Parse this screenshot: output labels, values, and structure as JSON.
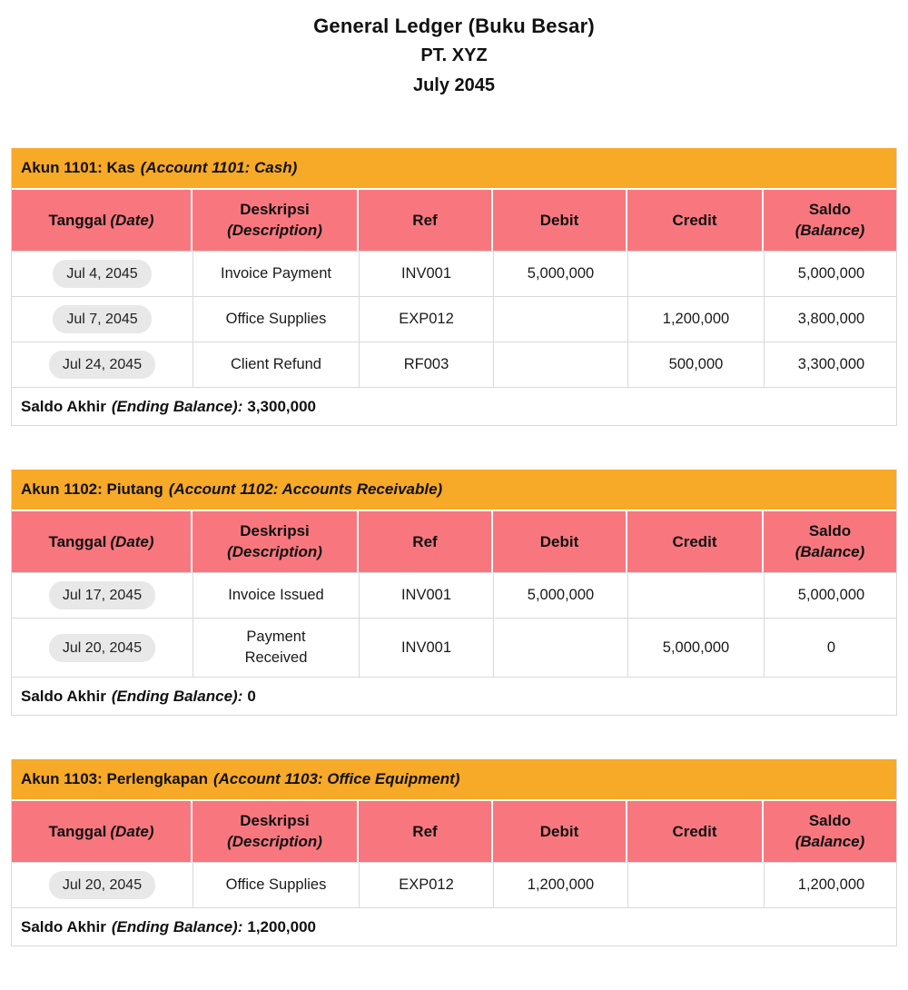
{
  "page": {
    "title_line1": "General Ledger (Buku Besar)",
    "title_line2": "PT. XYZ",
    "title_line3": "July 2045"
  },
  "colors": {
    "account_band_orange": "#f7a928",
    "column_header_pink": "#f8777e",
    "date_pill_gray": "#e8e8e8",
    "grid_line": "#d9d9d9"
  },
  "column_headers": [
    {
      "key": "date",
      "main": "Tanggal",
      "italic": "(Date)",
      "stacked": false
    },
    {
      "key": "description",
      "main": "Deskripsi",
      "italic": "(Description)",
      "stacked": true
    },
    {
      "key": "ref",
      "main": "Ref",
      "italic": "",
      "stacked": false
    },
    {
      "key": "debit",
      "main": "Debit",
      "italic": "",
      "stacked": false
    },
    {
      "key": "credit",
      "main": "Credit",
      "italic": "",
      "stacked": false
    },
    {
      "key": "balance",
      "main": "Saldo",
      "italic": "(Balance)",
      "stacked": true
    }
  ],
  "tables": [
    {
      "account_title_id": "Akun 1101: Kas",
      "account_title_en": "(Account 1101: Cash)",
      "rows": [
        {
          "date": "Jul 4, 2045",
          "description": "Invoice Payment",
          "ref": "INV001",
          "debit": "5,000,000",
          "credit": "",
          "balance": "5,000,000"
        },
        {
          "date": "Jul 7, 2045",
          "description": "Office Supplies",
          "ref": "EXP012",
          "debit": "",
          "credit": "1,200,000",
          "balance": "3,800,000"
        },
        {
          "date": "Jul 24, 2045",
          "description": "Client Refund",
          "ref": "RF003",
          "debit": "",
          "credit": "500,000",
          "balance": "3,300,000"
        }
      ],
      "footer": {
        "label_id": "Saldo Akhir",
        "label_en": "(Ending Balance):",
        "value": "3,300,000"
      }
    },
    {
      "account_title_id": "Akun 1102: Piutang",
      "account_title_en": "(Account 1102: Accounts Receivable)",
      "rows": [
        {
          "date": "Jul 17, 2045",
          "description": "Invoice Issued",
          "ref": "INV001",
          "debit": "5,000,000",
          "credit": "",
          "balance": "5,000,000"
        },
        {
          "date": "Jul 20, 2045",
          "description": "Payment\nReceived",
          "ref": "INV001",
          "debit": "",
          "credit": "5,000,000",
          "balance": "0"
        }
      ],
      "footer": {
        "label_id": "Saldo Akhir",
        "label_en": "(Ending Balance):",
        "value": "0"
      }
    },
    {
      "account_title_id": "Akun 1103: Perlengkapan",
      "account_title_en": "(Account 1103: Office Equipment)",
      "rows": [
        {
          "date": "Jul 20, 2045",
          "description": "Office Supplies",
          "ref": "EXP012",
          "debit": "1,200,000",
          "credit": "",
          "balance": "1,200,000"
        }
      ],
      "footer": {
        "label_id": "Saldo Akhir",
        "label_en": "(Ending Balance):",
        "value": "1,200,000"
      }
    }
  ]
}
